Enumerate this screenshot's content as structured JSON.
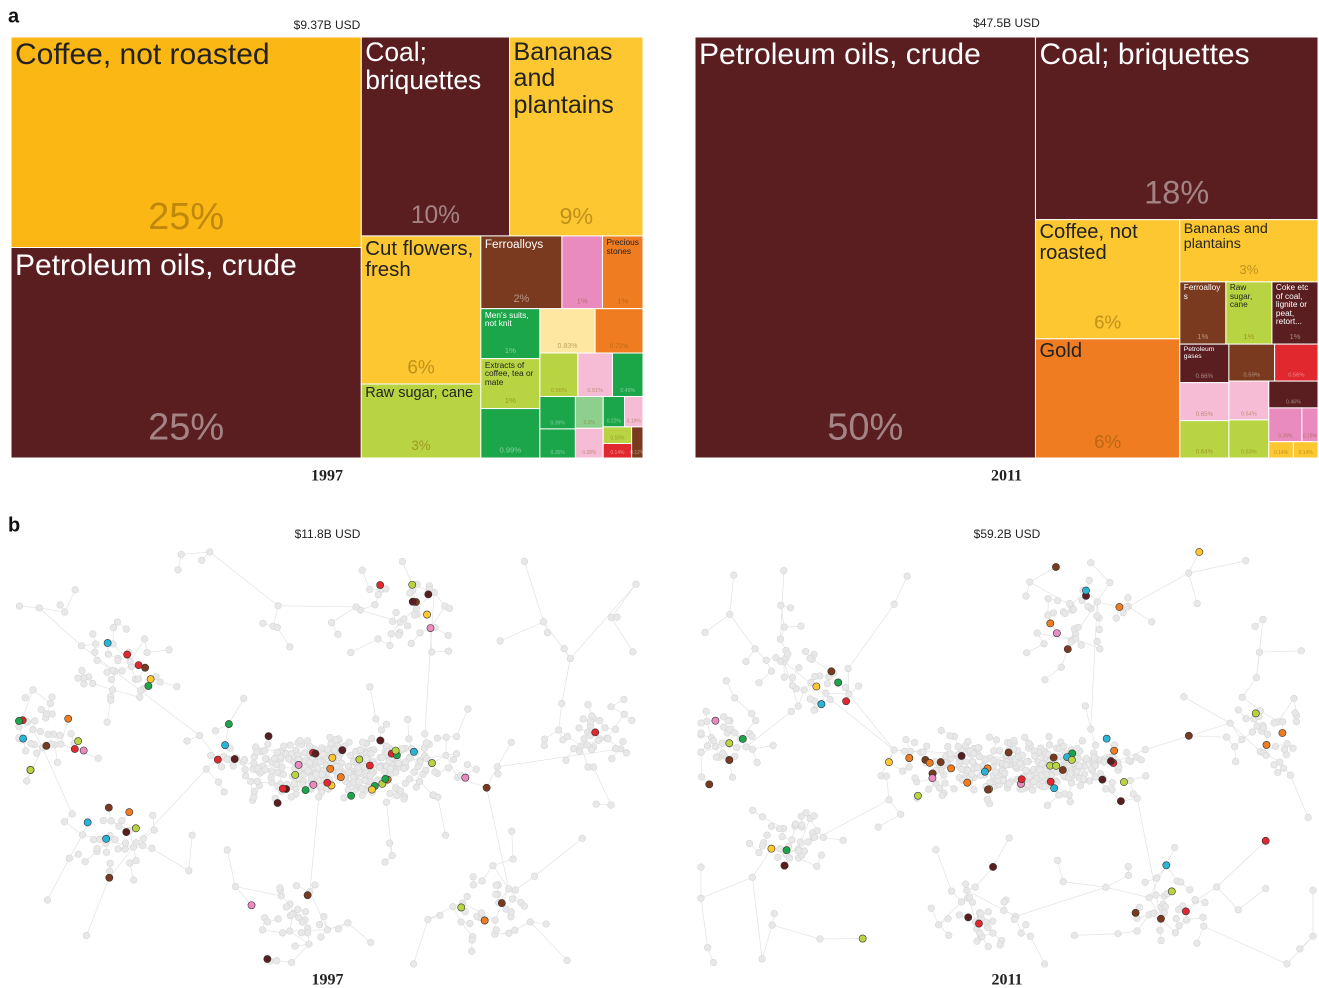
{
  "panel_labels": [
    "a",
    "b"
  ],
  "chart_data": [
    {
      "type": "treemap",
      "title": "$9.37B USD",
      "xlabel": "1997",
      "categories": [
        "Coffee, not roasted",
        "Petroleum oils, crude",
        "Coal; briquettes",
        "Bananas and plantains",
        "Cut flowers, fresh",
        "Raw sugar, cane",
        "Ferroalloys",
        null,
        "Precious stones",
        "Men's suits, not knit",
        "Extracts of coffee, tea or mate",
        null,
        null,
        null,
        null,
        null,
        null,
        null,
        null,
        null,
        null,
        null,
        null,
        null,
        null,
        null
      ],
      "values": [
        25,
        25,
        10,
        9,
        6,
        3,
        2,
        1,
        1,
        1,
        1,
        0.99,
        0.83,
        0.72,
        0.56,
        0.51,
        0.45,
        0.39,
        0.35,
        0.3,
        0.28,
        0.22,
        0.19,
        0.16,
        0.14,
        0.12
      ],
      "value_labels": [
        "25%",
        "25%",
        "10%",
        "9%",
        "6%",
        "3%",
        "2%",
        "1%",
        "1%",
        "1%",
        "1%",
        "0.99%",
        "0.83%",
        "0.72%",
        "0.56%",
        "0.51%",
        "0.45%",
        "0.39%",
        "0.35%",
        "0.3%",
        "0.28%",
        "0.22%",
        "0.19%",
        "0.16%",
        "0.14%",
        "0.12%"
      ],
      "colors": [
        "#fbb714",
        "#5a1e20",
        "#5a1e20",
        "#fcc731",
        "#fcc731",
        "#b9d443",
        "#7a3a1f",
        "#e98bbf",
        "#f07c22",
        "#1ba64a",
        "#b9d443",
        "#1ba64a",
        "#fde7a1",
        "#f07c22",
        "#b9d443",
        "#f6bcd6",
        "#1ba64a",
        "#1ba64a",
        "#1ba64a",
        "#8fcf8d",
        "#f6bcd6",
        "#1ba64a",
        "#f6bcd6",
        "#b9d443",
        "#e0282e",
        "#7a3a1f"
      ]
    },
    {
      "type": "treemap",
      "title": "$47.5B USD",
      "xlabel": "2011",
      "categories": [
        "Petroleum oils, crude",
        "Coal; briquettes",
        "Coffee, not roasted",
        "Gold",
        "Bananas and plantains",
        "Ferroalloys",
        "Raw sugar, cane",
        "Coke etc of coal, lignite or peat, retort...",
        "Petroleum gases",
        null,
        null,
        null,
        null,
        null,
        null,
        null,
        null,
        null,
        null,
        null
      ],
      "values": [
        50,
        18,
        6,
        6,
        3,
        1,
        1,
        1,
        0.66,
        0.65,
        0.64,
        0.59,
        0.56,
        0.54,
        0.53,
        0.46,
        0.39,
        0.19,
        0.14,
        0.14
      ],
      "value_labels": [
        "50%",
        "18%",
        "6%",
        "6%",
        "3%",
        "1%",
        "1%",
        "1%",
        "0.66%",
        "0.65%",
        "0.64%",
        "0.59%",
        "0.56%",
        "0.54%",
        "0.53%",
        "0.46%",
        "0.39%",
        "0.19%",
        "0.14%",
        "0.14%"
      ],
      "colors": [
        "#5a1e20",
        "#5a1e20",
        "#fcc731",
        "#f07c22",
        "#fcc731",
        "#7a3a1f",
        "#b9d443",
        "#5a1e20",
        "#5a1e20",
        "#f6bcd6",
        "#b9d443",
        "#7a3a1f",
        "#e0282e",
        "#f6bcd6",
        "#b9d443",
        "#5a1e20",
        "#e98bbf",
        "#e98bbf",
        "#fcc731",
        "#fcc731"
      ]
    },
    {
      "type": "network",
      "title": "$11.8B USD",
      "xlabel": "1997"
    },
    {
      "type": "network",
      "title": "$59.2B USD",
      "xlabel": "2011"
    }
  ]
}
